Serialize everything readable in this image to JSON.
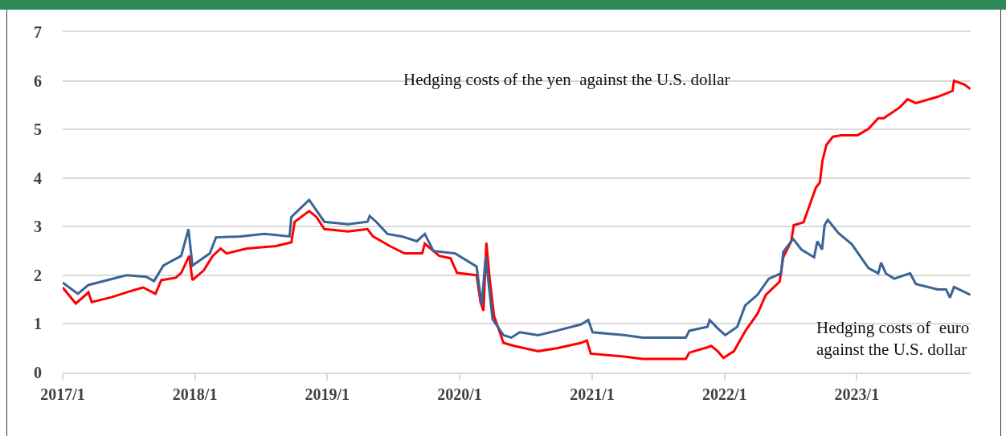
{
  "chart_data": {
    "type": "line",
    "xlim": [
      "2017-01-01",
      "2023-11-11"
    ],
    "ylim": [
      0,
      7
    ],
    "yticks": [
      0,
      1,
      2,
      3,
      4,
      5,
      6,
      7
    ],
    "xticks": [
      {
        "value": "2017-01-01",
        "label": "2017/1"
      },
      {
        "value": "2018-01-01",
        "label": "2018/1"
      },
      {
        "value": "2019-01-01",
        "label": "2019/1"
      },
      {
        "value": "2020-01-01",
        "label": "2020/1"
      },
      {
        "value": "2021-01-01",
        "label": "2021/1"
      },
      {
        "value": "2022-01-01",
        "label": "2022/1"
      },
      {
        "value": "2023-01-01",
        "label": "2023/1"
      }
    ],
    "grid": "y",
    "marker": "none",
    "line_style": "solid",
    "annotations": [
      "Hedging costs of the yen  against the U.S. dollar",
      "Hedging costs of  euro\nagainst the U.S. dollar"
    ],
    "series": [
      {
        "color": "#ff0000",
        "x": [
          "2017-01-01",
          "2017-02-06",
          "2017-03-06",
          "2017-03-13",
          "2017-03-22",
          "2017-05-16",
          "2017-06-26",
          "2017-07-19",
          "2017-08-11",
          "2017-09-14",
          "2017-09-30",
          "2017-11-09",
          "2017-11-24",
          "2017-12-16",
          "2017-12-25",
          "2018-01-25",
          "2018-02-19",
          "2018-03-13",
          "2018-03-29",
          "2018-05-24",
          "2018-08-12",
          "2018-09-24",
          "2018-10-03",
          "2018-11-12",
          "2018-12-02",
          "2018-12-24",
          "2019-02-27",
          "2019-04-22",
          "2019-05-07",
          "2019-06-23",
          "2019-08-02",
          "2019-09-20",
          "2019-09-27",
          "2019-11-06",
          "2019-12-07",
          "2019-12-25",
          "2020-02-17",
          "2020-02-28",
          "2020-03-07",
          "2020-03-15",
          "2020-03-24",
          "2020-04-05",
          "2020-05-01",
          "2020-05-30",
          "2020-08-05",
          "2020-09-25",
          "2020-12-01",
          "2020-12-17",
          "2020-12-28",
          "2021-03-29",
          "2021-05-20",
          "2021-09-16",
          "2021-09-26",
          "2021-11-15",
          "2021-11-25",
          "2021-12-13",
          "2021-12-29",
          "2022-01-27",
          "2022-02-27",
          "2022-04-02",
          "2022-04-25",
          "2022-06-02",
          "2022-06-12",
          "2022-07-04",
          "2022-07-11",
          "2022-08-07",
          "2022-09-10",
          "2022-09-21",
          "2022-09-28",
          "2022-10-09",
          "2022-10-27",
          "2022-11-19",
          "2023-01-03",
          "2023-02-02",
          "2023-03-01",
          "2023-03-16",
          "2023-04-29",
          "2023-05-21",
          "2023-06-13",
          "2023-08-12",
          "2023-09-22",
          "2023-09-26",
          "2023-10-25",
          "2023-11-10"
        ],
        "values": [
          1.75,
          1.42,
          1.6,
          1.65,
          1.45,
          1.55,
          1.65,
          1.7,
          1.75,
          1.62,
          1.9,
          1.95,
          2.05,
          2.4,
          1.9,
          2.1,
          2.4,
          2.55,
          2.45,
          2.55,
          2.6,
          2.68,
          3.1,
          3.32,
          3.2,
          2.95,
          2.9,
          2.95,
          2.8,
          2.6,
          2.45,
          2.45,
          2.65,
          2.4,
          2.35,
          2.05,
          2.0,
          1.44,
          1.27,
          2.67,
          1.93,
          1.17,
          0.61,
          0.55,
          0.44,
          0.5,
          0.61,
          0.66,
          0.39,
          0.33,
          0.28,
          0.28,
          0.41,
          0.52,
          0.55,
          0.44,
          0.3,
          0.44,
          0.85,
          1.21,
          1.6,
          1.87,
          2.37,
          2.7,
          3.03,
          3.09,
          3.8,
          3.91,
          4.35,
          4.68,
          4.85,
          4.88,
          4.88,
          5.01,
          5.23,
          5.23,
          5.45,
          5.62,
          5.54,
          5.67,
          5.79,
          6.0,
          5.92,
          5.83
        ]
      },
      {
        "color": "#3a6496",
        "x": [
          "2017-01-01",
          "2017-02-06",
          "2017-02-12",
          "2017-03-13",
          "2017-06-26",
          "2017-08-20",
          "2017-09-10",
          "2017-10-06",
          "2017-11-24",
          "2017-12-14",
          "2017-12-25",
          "2018-02-11",
          "2018-02-28",
          "2018-05-06",
          "2018-07-12",
          "2018-09-19",
          "2018-09-24",
          "2018-11-12",
          "2018-12-24",
          "2019-02-27",
          "2019-04-22",
          "2019-04-28",
          "2019-05-16",
          "2019-06-16",
          "2019-07-26",
          "2019-09-05",
          "2019-09-27",
          "2019-10-21",
          "2019-12-20",
          "2020-02-17",
          "2020-03-02",
          "2020-03-13",
          "2020-04-01",
          "2020-05-01",
          "2020-05-23",
          "2020-06-15",
          "2020-08-05",
          "2020-09-25",
          "2020-12-01",
          "2020-12-21",
          "2021-01-02",
          "2021-03-29",
          "2021-05-20",
          "2021-09-16",
          "2021-09-26",
          "2021-11-15",
          "2021-11-21",
          "2021-12-13",
          "2022-01-03",
          "2022-02-05",
          "2022-02-27",
          "2022-04-02",
          "2022-05-03",
          "2022-06-06",
          "2022-06-12",
          "2022-07-09",
          "2022-08-01",
          "2022-09-05",
          "2022-09-14",
          "2022-09-27",
          "2022-10-04",
          "2022-10-13",
          "2022-11-11",
          "2022-12-18",
          "2023-02-02",
          "2023-03-01",
          "2023-03-09",
          "2023-03-22",
          "2023-04-14",
          "2023-05-28",
          "2023-06-13",
          "2023-08-12",
          "2023-09-04",
          "2023-09-15",
          "2023-09-26",
          "2023-11-10"
        ],
        "values": [
          1.85,
          1.65,
          1.62,
          1.8,
          2.0,
          1.97,
          1.88,
          2.2,
          2.4,
          2.95,
          2.2,
          2.45,
          2.78,
          2.8,
          2.85,
          2.8,
          3.2,
          3.55,
          3.1,
          3.05,
          3.1,
          3.22,
          3.1,
          2.85,
          2.8,
          2.7,
          2.85,
          2.5,
          2.45,
          2.18,
          1.38,
          2.38,
          1.1,
          0.77,
          0.72,
          0.83,
          0.77,
          0.86,
          0.99,
          1.08,
          0.83,
          0.77,
          0.72,
          0.72,
          0.86,
          0.94,
          1.08,
          0.91,
          0.77,
          0.94,
          1.38,
          1.6,
          1.93,
          2.04,
          2.48,
          2.75,
          2.53,
          2.37,
          2.7,
          2.53,
          3.03,
          3.14,
          2.87,
          2.64,
          2.15,
          2.04,
          2.26,
          2.04,
          1.93,
          2.04,
          1.82,
          1.71,
          1.71,
          1.54,
          1.76,
          1.6
        ]
      }
    ]
  }
}
